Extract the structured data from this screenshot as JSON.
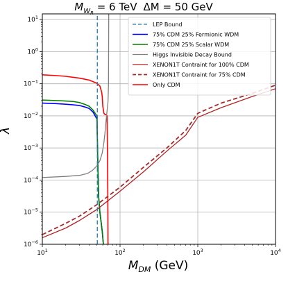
{
  "chart_data": {
    "type": "line",
    "title": {
      "m_symbol": "M",
      "m_subscript": "W",
      "m_subsub": "R",
      "m_value": " = 6 TeV",
      "delta_symbol": "ΔM",
      "delta_value": " = 50 GeV"
    },
    "xlabel": {
      "symbol": "M",
      "subscript": "DM",
      "unit": " (GeV)"
    },
    "ylabel": "λ",
    "xscale": "log",
    "yscale": "log",
    "xlim": [
      10,
      10000
    ],
    "ylim": [
      1e-06,
      15
    ],
    "grid": true,
    "legend_position": "top-right",
    "x_ticks": [
      {
        "value": 10,
        "base": "10",
        "exp": "1"
      },
      {
        "value": 100,
        "base": "10",
        "exp": "2"
      },
      {
        "value": 1000,
        "base": "10",
        "exp": "3"
      },
      {
        "value": 10000,
        "base": "10",
        "exp": "4"
      }
    ],
    "y_ticks": [
      {
        "value": 10,
        "base": "10",
        "exp": "1"
      },
      {
        "value": 1,
        "base": "10",
        "exp": "0"
      },
      {
        "value": 0.1,
        "base": "10",
        "exp": "−1"
      },
      {
        "value": 0.01,
        "base": "10",
        "exp": "−2"
      },
      {
        "value": 0.001,
        "base": "10",
        "exp": "−3"
      },
      {
        "value": 0.0001,
        "base": "10",
        "exp": "−4"
      },
      {
        "value": 1e-05,
        "base": "10",
        "exp": "−5"
      },
      {
        "value": 1e-06,
        "base": "10",
        "exp": "−6"
      }
    ],
    "series": [
      {
        "name": "LEP Bound",
        "color": "#1f77b4",
        "dash": "dashed",
        "width": 1.3,
        "x": [
          51,
          51
        ],
        "y": [
          1e-06,
          15
        ]
      },
      {
        "name": "75% CDM 25% Fermionic WDM",
        "color": "#0000ff",
        "dash": "solid",
        "width": 1.6,
        "x": [
          10,
          15,
          20,
          25,
          30,
          35,
          40,
          45,
          49,
          50.5,
          51,
          52,
          53,
          55,
          57,
          59,
          61
        ],
        "y": [
          0.025,
          0.024,
          0.023,
          0.022,
          0.021,
          0.019,
          0.017,
          0.013,
          0.009,
          0.008,
          0.002,
          0.0002,
          3e-05,
          1e-05,
          5e-06,
          2.5e-06,
          1e-06
        ]
      },
      {
        "name": "75% CDM 25% Scalar WDM",
        "color": "#008000",
        "dash": "solid",
        "width": 1.6,
        "x": [
          10,
          15,
          20,
          25,
          30,
          35,
          40,
          45,
          49,
          50.5,
          51,
          52,
          53,
          55,
          57,
          59,
          61
        ],
        "y": [
          0.031,
          0.03,
          0.029,
          0.028,
          0.026,
          0.023,
          0.02,
          0.015,
          0.011,
          0.01,
          0.002,
          0.0002,
          3e-05,
          1e-05,
          5e-06,
          2.5e-06,
          1e-06
        ]
      },
      {
        "name": "Higgs Invisible Decay Bound",
        "color": "#808080",
        "dash": "solid",
        "width": 1.3,
        "x": [
          10,
          20,
          30,
          38,
          44,
          50,
          55,
          59,
          62,
          64,
          66,
          68,
          70,
          71,
          71.5
        ],
        "y": [
          0.00012,
          0.00013,
          0.00014,
          0.00016,
          0.0002,
          0.00027,
          0.0004,
          0.0007,
          0.0015,
          0.003,
          0.007,
          0.014,
          0.028,
          0.1,
          15
        ]
      },
      {
        "name": "XENON1T Contraint for 100% CDM",
        "color": "#b22222",
        "dash": "solid",
        "width": 1.3,
        "x": [
          10,
          20,
          30,
          50,
          100,
          200,
          400,
          700,
          1000,
          2000,
          5000,
          10000
        ],
        "y": [
          1.6e-06,
          3.2e-06,
          5.5e-06,
          1.2e-05,
          4.5e-05,
          0.00018,
          0.0008,
          0.0025,
          0.009,
          0.018,
          0.04,
          0.07
        ]
      },
      {
        "name": "XENON1T Contraint for 75% CDM",
        "color": "#a52a2a",
        "dash": "dashed",
        "width": 1.8,
        "x": [
          10,
          20,
          30,
          50,
          100,
          200,
          400,
          700,
          1000,
          2000,
          5000,
          10000
        ],
        "y": [
          2e-06,
          4.5e-06,
          7.5e-06,
          1.7e-05,
          6e-05,
          0.00025,
          0.001,
          0.0035,
          0.012,
          0.025,
          0.05,
          0.09
        ]
      },
      {
        "name": "Only CDM",
        "color": "#ff0000",
        "dash": "solid",
        "width": 1.6,
        "x": [
          10,
          15,
          20,
          30,
          40,
          50,
          55,
          58,
          59,
          60,
          62,
          64,
          66,
          67,
          68,
          69,
          69.5,
          69.8,
          70
        ],
        "y": [
          0.19,
          0.18,
          0.17,
          0.15,
          0.13,
          0.105,
          0.085,
          0.055,
          0.04,
          0.02,
          0.012,
          0.011,
          0.011,
          0.0105,
          0.01,
          0.0005,
          5e-05,
          8e-06,
          1e-06
        ]
      }
    ]
  }
}
